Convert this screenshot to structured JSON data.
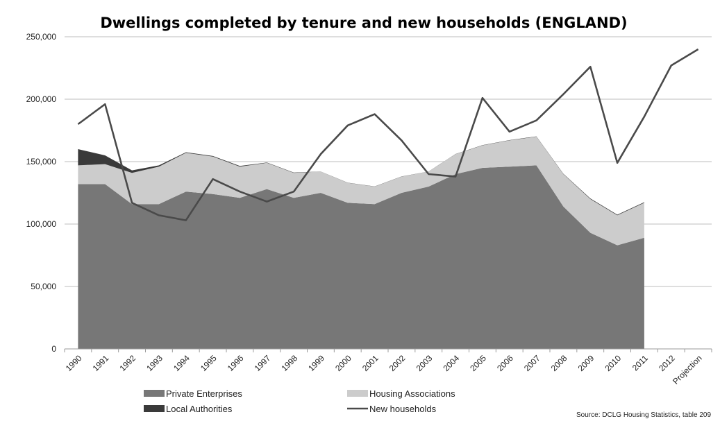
{
  "chart_data": {
    "type": "area",
    "title": "Dwellings completed by tenure and new households (ENGLAND)",
    "source": "Source: DCLG Housing Statistics, table 209",
    "categories": [
      "1990",
      "1991",
      "1992",
      "1993",
      "1994",
      "1995",
      "1996",
      "1997",
      "1998",
      "1999",
      "2000",
      "2001",
      "2002",
      "2003",
      "2004",
      "2005",
      "2006",
      "2007",
      "2008",
      "2009",
      "2010",
      "2011",
      "2012",
      "Projection"
    ],
    "ylim": [
      0,
      250000
    ],
    "yticks": [
      "0",
      "50,000",
      "100,000",
      "150,000",
      "200,000",
      "250,000"
    ],
    "ytick_values": [
      0,
      50000,
      100000,
      150000,
      200000,
      250000
    ],
    "grid": true,
    "legend_placement": "bottom",
    "stacked_series": [
      {
        "name": "Private Enterprises",
        "color": "#777777",
        "values": [
          132000,
          132000,
          116000,
          116000,
          126000,
          124000,
          121000,
          128000,
          121000,
          125000,
          117000,
          116000,
          125000,
          130000,
          140000,
          145000,
          146000,
          147000,
          114000,
          93000,
          83000,
          89000,
          null,
          null
        ]
      },
      {
        "name": "Housing Associations",
        "color": "#cccccc",
        "values": [
          15000,
          16000,
          25000,
          30000,
          31000,
          30000,
          25000,
          21000,
          20000,
          17000,
          16000,
          14000,
          13000,
          12000,
          16000,
          18000,
          21000,
          23000,
          26000,
          27000,
          24000,
          28000,
          null,
          null
        ]
      },
      {
        "name": "Local Authorities",
        "color": "#3a3a3a",
        "values": [
          13000,
          7000,
          2000,
          1000,
          500,
          500,
          500,
          300,
          200,
          100,
          100,
          100,
          100,
          100,
          100,
          200,
          200,
          200,
          300,
          500,
          500,
          500,
          null,
          null
        ]
      }
    ],
    "line_series": [
      {
        "name": "New households",
        "color": "#4a4a4a",
        "values": [
          180000,
          196000,
          117000,
          107000,
          103000,
          136000,
          126000,
          118000,
          126000,
          156000,
          179000,
          188000,
          167000,
          140000,
          138000,
          201000,
          174000,
          183000,
          204000,
          226000,
          149000,
          186000,
          227000,
          240000
        ]
      }
    ],
    "legend": [
      "Private Enterprises",
      "Housing Associations",
      "Local Authorities",
      "New households"
    ]
  }
}
